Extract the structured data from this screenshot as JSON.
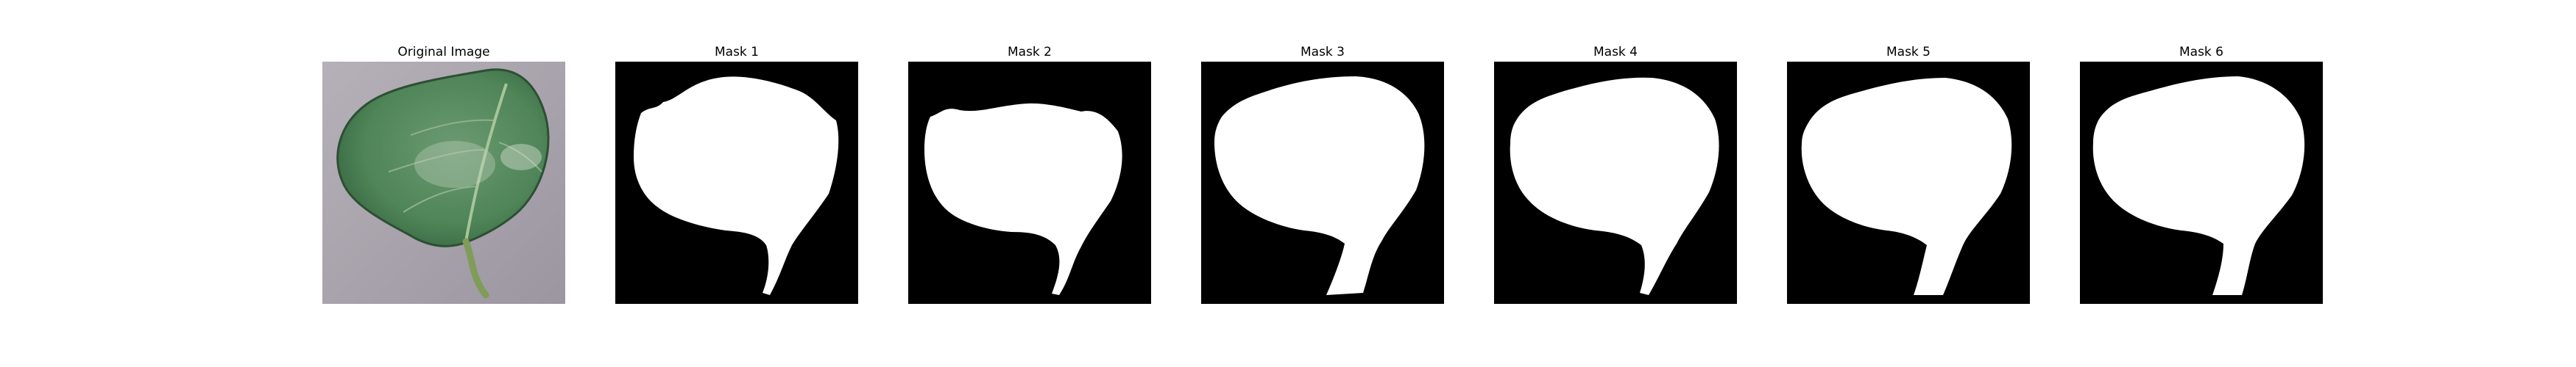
{
  "panels": [
    {
      "title": "Original Image"
    },
    {
      "title": "Mask 1"
    },
    {
      "title": "Mask 2"
    },
    {
      "title": "Mask 3"
    },
    {
      "title": "Mask 4"
    },
    {
      "title": "Mask 5"
    },
    {
      "title": "Mask 6"
    }
  ],
  "colors": {
    "background_photo": "#a8a3ac",
    "leaf_green": "#4f8558",
    "leaf_dark": "#3a6b45",
    "stem": "#7f9b57",
    "mask_bg": "#000000",
    "mask_fg": "#ffffff"
  }
}
